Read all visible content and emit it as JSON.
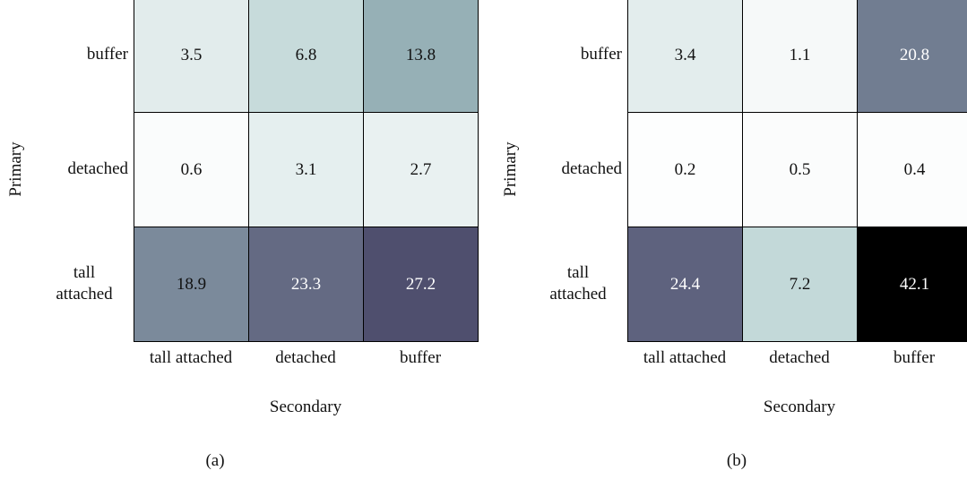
{
  "chart_data": [
    {
      "type": "heatmap",
      "caption": "(a)",
      "xlabel": "Secondary",
      "ylabel": "Primary",
      "x_categories": [
        "tall attached",
        "detached",
        "buffer"
      ],
      "y_categories": [
        "buffer",
        "detached",
        "tall attached"
      ],
      "values": [
        [
          3.5,
          6.8,
          13.8
        ],
        [
          0.6,
          3.1,
          2.7
        ],
        [
          18.9,
          23.3,
          27.2
        ]
      ]
    },
    {
      "type": "heatmap",
      "caption": "(b)",
      "xlabel": "Secondary",
      "ylabel": "Primary",
      "x_categories": [
        "tall attached",
        "detached",
        "buffer"
      ],
      "y_categories": [
        "buffer",
        "detached",
        "tall attached"
      ],
      "values": [
        [
          3.4,
          1.1,
          20.8
        ],
        [
          0.2,
          0.5,
          0.4
        ],
        [
          24.4,
          7.2,
          42.1
        ]
      ]
    }
  ]
}
